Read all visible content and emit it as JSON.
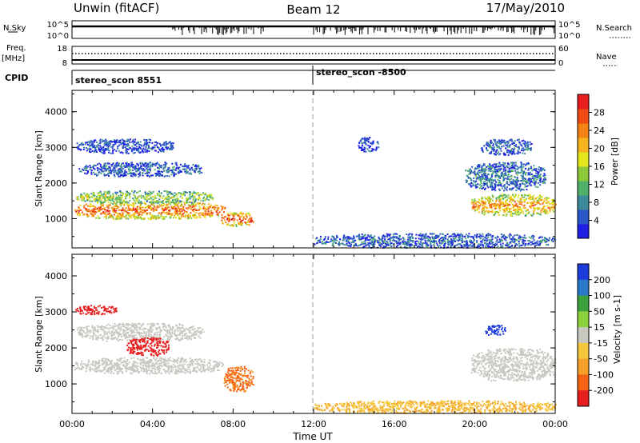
{
  "header": {
    "station": "Unwin (fitACF)",
    "beam": "Beam 12",
    "date": "17/May/2010"
  },
  "top_panels": {
    "nsky_label": "N.Sky",
    "nsearch_label": "N.Search",
    "noise_ticks_left": [
      "10^5",
      "10^0"
    ],
    "noise_ticks_right": [
      "10^5",
      "10^0"
    ],
    "freq_label_line1": "Freq.",
    "freq_label_line2": "[MHz]",
    "freq_ticks": [
      "18",
      "8"
    ],
    "nave_label": "Nave",
    "nave_ticks": [
      "60",
      "0"
    ],
    "cpid_label": "CPID",
    "cpid_entries": [
      {
        "name": "stereo_scon 8551",
        "start_hour": 0
      },
      {
        "name": "stereo_scon -8500",
        "start_hour": 12
      }
    ]
  },
  "chart_data": [
    {
      "type": "heatmap",
      "panel": "power",
      "ylabel": "Slant Range [km]",
      "yticks": [
        "1000",
        "2000",
        "3000",
        "4000"
      ],
      "ylim": [
        180,
        4600
      ],
      "xlim": [
        0,
        24
      ],
      "colorbar_label": "Power [dB]",
      "colorbar_ticks": [
        "4",
        "8",
        "12",
        "16",
        "20",
        "24",
        "28"
      ],
      "colorbar_colors": [
        "#1f1fe6",
        "#2a55c8",
        "#3c8a9a",
        "#4fb06a",
        "#8cc83a",
        "#e6e61e",
        "#f5b41e",
        "#f58214",
        "#f04b14",
        "#e61e1e"
      ],
      "regions": [
        {
          "hours": [
            0.1,
            7.6
          ],
          "range_km": [
            1000,
            1500
          ],
          "level": 0.85
        },
        {
          "hours": [
            0.2,
            7.0
          ],
          "range_km": [
            1450,
            1800
          ],
          "level": 0.5
        },
        {
          "hours": [
            0.3,
            6.5
          ],
          "range_km": [
            2200,
            2600
          ],
          "level": 0.2
        },
        {
          "hours": [
            0.2,
            5.0
          ],
          "range_km": [
            2850,
            3250
          ],
          "level": 0.15
        },
        {
          "hours": [
            7.4,
            9.0
          ],
          "range_km": [
            800,
            1200
          ],
          "level": 0.9
        },
        {
          "hours": [
            12.0,
            24.0
          ],
          "range_km": [
            200,
            600
          ],
          "level": 0.2
        },
        {
          "hours": [
            19.8,
            24.0
          ],
          "range_km": [
            1100,
            1700
          ],
          "level": 0.75
        },
        {
          "hours": [
            19.5,
            23.5
          ],
          "range_km": [
            1800,
            2600
          ],
          "level": 0.25
        },
        {
          "hours": [
            14.2,
            15.2
          ],
          "range_km": [
            2900,
            3300
          ],
          "level": 0.15
        },
        {
          "hours": [
            20.3,
            22.8
          ],
          "range_km": [
            2800,
            3250
          ],
          "level": 0.2
        }
      ]
    },
    {
      "type": "heatmap",
      "panel": "velocity",
      "ylabel": "Slant Range [km]",
      "yticks": [
        "1000",
        "2000",
        "3000",
        "4000"
      ],
      "ylim": [
        180,
        4600
      ],
      "xlim": [
        0,
        24
      ],
      "xticks": [
        "00:00",
        "04:00",
        "08:00",
        "12:00",
        "16:00",
        "20:00",
        "00:00"
      ],
      "xlabel": "Time UT",
      "colorbar_label": "Velocity [m s-1]",
      "colorbar_ticks": [
        "200",
        "100",
        "50",
        "15",
        "-15",
        "-50",
        "-100",
        "-200"
      ],
      "colorbar_colors": [
        "#1e3cdc",
        "#2a78c8",
        "#3ca03c",
        "#8cd23c",
        "#c8c8c0",
        "#f5c83c",
        "#f5a028",
        "#f56414",
        "#e61e1e"
      ],
      "regions": [
        {
          "hours": [
            0.1,
            7.5
          ],
          "range_km": [
            1300,
            1750
          ],
          "velocity": 0
        },
        {
          "hours": [
            0.2,
            6.5
          ],
          "range_km": [
            2200,
            2700
          ],
          "velocity": 0
        },
        {
          "hours": [
            0.1,
            2.2
          ],
          "range_km": [
            2950,
            3200
          ],
          "velocity": -200
        },
        {
          "hours": [
            2.7,
            4.8
          ],
          "range_km": [
            1800,
            2300
          ],
          "velocity": -200
        },
        {
          "hours": [
            7.5,
            9.0
          ],
          "range_km": [
            800,
            1500
          ],
          "velocity": -80
        },
        {
          "hours": [
            12.0,
            24.0
          ],
          "range_km": [
            200,
            550
          ],
          "velocity": -30
        },
        {
          "hours": [
            19.8,
            24.0
          ],
          "range_km": [
            1100,
            2000
          ],
          "velocity": 0
        },
        {
          "hours": [
            20.5,
            21.5
          ],
          "range_km": [
            2350,
            2650
          ],
          "velocity": 200
        }
      ]
    }
  ]
}
